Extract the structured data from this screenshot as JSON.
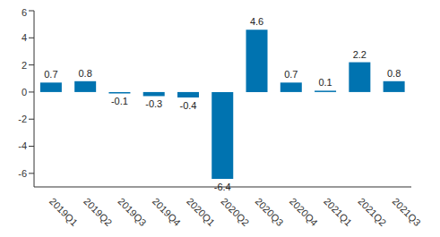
{
  "chart_data": {
    "type": "bar",
    "categories": [
      "2019Q1",
      "2019Q2",
      "2019Q3",
      "2019Q4",
      "2020Q1",
      "2020Q2",
      "2020Q3",
      "2020Q4",
      "2021Q1",
      "2021Q2",
      "2021Q3"
    ],
    "values": [
      0.7,
      0.8,
      -0.1,
      -0.3,
      -0.4,
      -6.4,
      4.6,
      0.7,
      0.1,
      2.2,
      0.8
    ],
    "color": "#0073b0",
    "ylim": [
      -7,
      6
    ],
    "yticks": [
      -6,
      -4,
      -2,
      0,
      2,
      4,
      6
    ],
    "grid": false,
    "data_labels": true
  }
}
